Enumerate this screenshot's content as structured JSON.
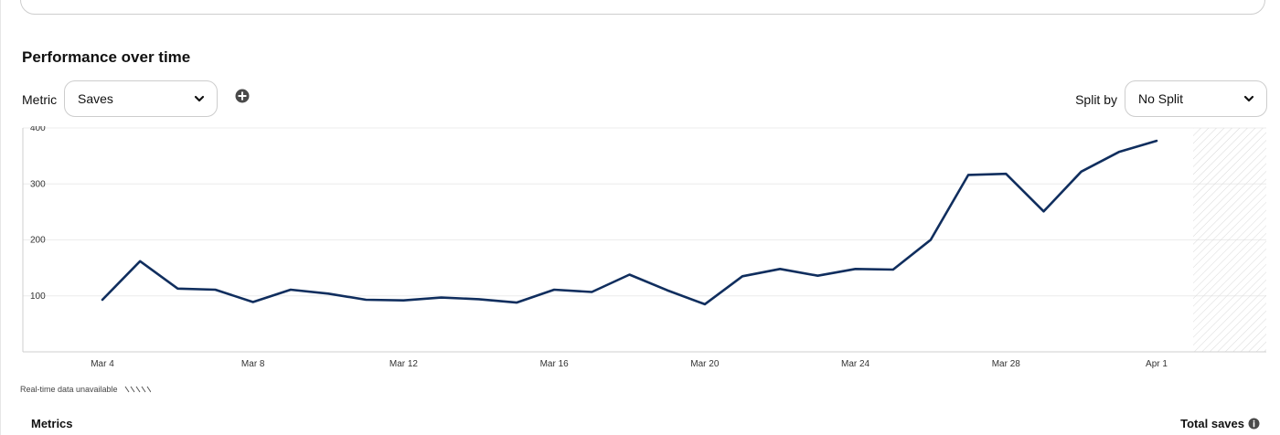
{
  "section": {
    "title": "Performance over time"
  },
  "controls": {
    "metric_label": "Metric",
    "metric_value": "Saves",
    "split_label": "Split by",
    "split_value": "No Split"
  },
  "footer": {
    "realtime_note": "Real-time data unavailable",
    "metrics_heading": "Metrics",
    "total_heading": "Total saves"
  },
  "colors": {
    "line": "#102e5e",
    "grid": "#ececec",
    "hatch": "#d9d9d9"
  },
  "chart_data": {
    "type": "line",
    "series": [
      {
        "values": [
          93,
          162,
          113,
          111,
          89,
          111,
          104,
          93,
          92,
          97,
          94,
          88,
          111,
          107,
          138,
          110,
          85,
          135,
          148,
          136,
          148,
          147,
          200,
          316,
          318,
          251,
          322,
          357,
          377
        ]
      }
    ],
    "x": [
      "Mar 4",
      "Mar 5",
      "Mar 6",
      "Mar 7",
      "Mar 8",
      "Mar 9",
      "Mar 10",
      "Mar 11",
      "Mar 12",
      "Mar 13",
      "Mar 14",
      "Mar 15",
      "Mar 16",
      "Mar 17",
      "Mar 18",
      "Mar 19",
      "Mar 20",
      "Mar 21",
      "Mar 22",
      "Mar 23",
      "Mar 24",
      "Mar 25",
      "Mar 26",
      "Mar 27",
      "Mar 28",
      "Mar 29",
      "Mar 30",
      "Mar 31",
      "Apr 1"
    ],
    "x_tick_labels": [
      "Mar 4",
      "Mar 8",
      "Mar 12",
      "Mar 16",
      "Mar 20",
      "Mar 24",
      "Mar 28",
      "Apr 1"
    ],
    "y_ticks": [
      100,
      200,
      300,
      400
    ],
    "ylim": [
      0,
      400
    ],
    "grid": true,
    "realtime_unavailable_region": true
  }
}
